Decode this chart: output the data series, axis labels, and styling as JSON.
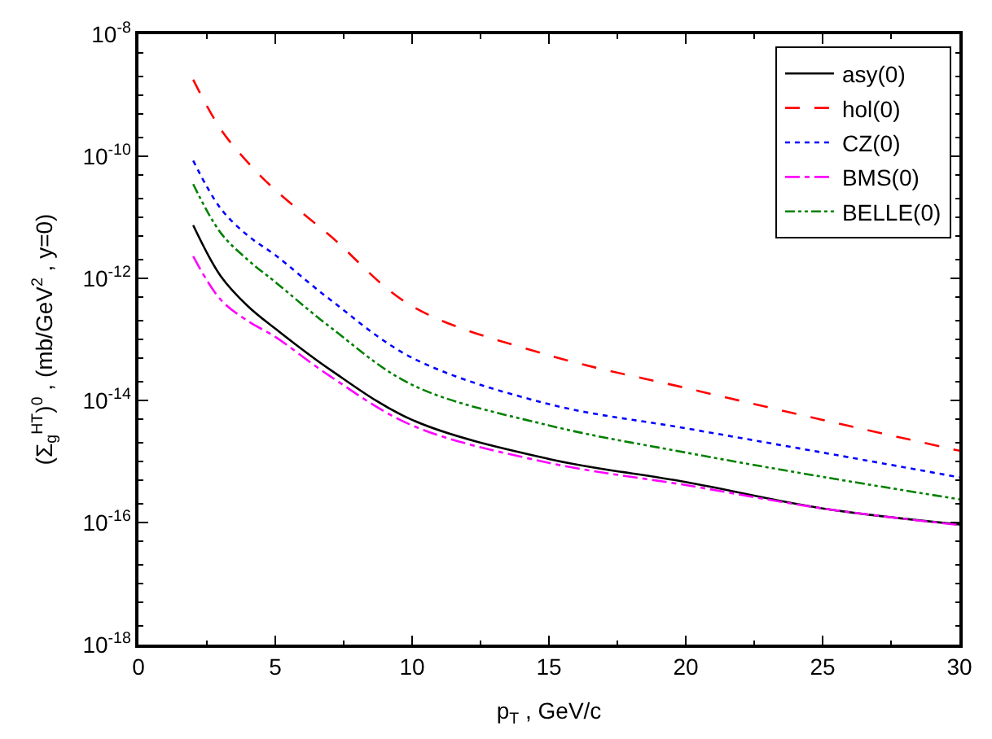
{
  "chart_data": {
    "type": "line",
    "xlabel": "p$_{T}$ , GeV/c",
    "ylabel": "(Σ$_{g}$$^{HT}$)$^{0}$ , (mb/GeV$^{2}$ , y=0)",
    "x": [
      2,
      3,
      4,
      5,
      7,
      10,
      15,
      20,
      25,
      30
    ],
    "series": [
      {
        "name": "asy(0)",
        "color": "#000000",
        "line_style": "solid",
        "values": [
          7.4e-12,
          1.1e-12,
          3.5e-13,
          1.5e-13,
          3.2e-14,
          4.8e-15,
          1.1e-15,
          4.6e-16,
          1.7e-16,
          9.3e-17
        ]
      },
      {
        "name": "hol(0)",
        "color": "#ff0000",
        "line_style": "dashed",
        "values": [
          1.8e-09,
          2.8e-10,
          7.9e-11,
          2.8e-11,
          5e-12,
          3.5e-13,
          5.5e-14,
          1.6e-14,
          4.8e-15,
          1.5e-15
        ]
      },
      {
        "name": "CZ(0)",
        "color": "#0000ff",
        "line_style": "dotted",
        "values": [
          8.5e-11,
          1.4e-11,
          5e-12,
          2.4e-12,
          4.5e-13,
          5e-14,
          8.7e-15,
          3.5e-15,
          1.4e-15,
          5.5e-16
        ]
      },
      {
        "name": "BMS(0)",
        "color": "#ff00ff",
        "line_style": "dashdot",
        "values": [
          2.3e-12,
          4.5e-13,
          2e-13,
          1.1e-13,
          2.5e-14,
          3.9e-15,
          9.5e-16,
          4.1e-16,
          1.7e-16,
          9.1e-17
        ]
      },
      {
        "name": "BELLE(0)",
        "color": "#008000",
        "line_style": "dashdotdot",
        "values": [
          3.5e-11,
          5.6e-12,
          2e-12,
          8.7e-13,
          1.6e-13,
          1.8e-14,
          3.9e-15,
          1.4e-15,
          5.6e-16,
          2.4e-16
        ]
      }
    ],
    "log": "y",
    "xlim": [
      0,
      30
    ],
    "xticks": [
      0,
      5,
      10,
      15,
      20,
      25,
      30
    ],
    "ylim": [
      1e-18,
      1e-08
    ],
    "yticks": [
      {
        "value": 1e-18,
        "label": "10$^{-18}$"
      },
      {
        "value": 1e-16,
        "label": "10$^{-16}$"
      },
      {
        "value": 1e-14,
        "label": "10$^{-14}$"
      },
      {
        "value": 1e-12,
        "label": "10$^{-12}$"
      },
      {
        "value": 1e-10,
        "label": "10$^{-10}$"
      },
      {
        "value": 1e-08,
        "label": "10$^{-8}$"
      }
    ],
    "legend": "top right",
    "marker": "none"
  }
}
